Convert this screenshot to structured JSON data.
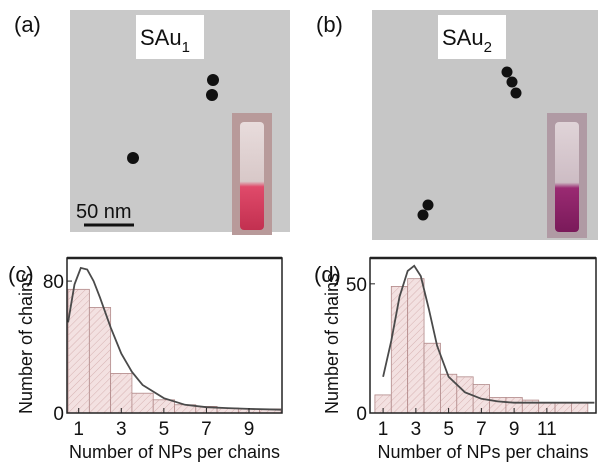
{
  "images": [
    {
      "label": "(a)",
      "sample": "SAu",
      "subscript": "1",
      "scale_bar": "50 nm"
    },
    {
      "label": "(b)",
      "sample": "SAu",
      "subscript": "2"
    }
  ],
  "chart_data": [
    {
      "type": "histogram",
      "label": "(c)",
      "x_label": "Number of NPs per chains",
      "y_label": "Number of chains",
      "bins": [
        0.5,
        1.5,
        2.5,
        3.5,
        4.5,
        5.5,
        6.5,
        7.5,
        8.5,
        9.5,
        10.5
      ],
      "counts": [
        75,
        64,
        24,
        12,
        8,
        5,
        4,
        3,
        2.5,
        2.5
      ],
      "color": "#f3e1e1",
      "fit": {
        "x": [
          0.5,
          0.8,
          1.1,
          1.4,
          1.7,
          2,
          2.5,
          3,
          3.5,
          4,
          5,
          6,
          7,
          8,
          9,
          10.5
        ],
        "y": [
          55,
          78,
          88,
          87,
          80,
          70,
          52,
          36,
          25,
          17,
          9,
          5,
          3.5,
          3,
          2.5,
          2
        ]
      },
      "xlim": [
        0.45,
        10.55
      ],
      "ylim": [
        0,
        94
      ],
      "xticks": [
        1,
        3,
        5,
        7,
        9
      ],
      "yticks": [
        0,
        80
      ]
    },
    {
      "type": "histogram",
      "label": "(d)",
      "x_label": "Number of NPs per chains",
      "y_label": "Number of chains",
      "bins": [
        0.5,
        1.5,
        2.5,
        3.5,
        4.5,
        5.5,
        6.5,
        7.5,
        8.5,
        9.5,
        10.5,
        11.5,
        12.5,
        13.5
      ],
      "counts": [
        7,
        49,
        52,
        27,
        15,
        14,
        11,
        6,
        6,
        5,
        4,
        4,
        4
      ],
      "color": "#f3e1e1",
      "fit": {
        "x": [
          1,
          1.5,
          2,
          2.5,
          2.9,
          3.3,
          3.8,
          4.3,
          5,
          6,
          7,
          8,
          9,
          10,
          11,
          12,
          13.9
        ],
        "y": [
          14,
          28,
          45,
          55,
          57,
          53,
          40,
          26,
          14,
          8,
          5.5,
          4.5,
          4,
          4,
          4,
          4,
          4
        ]
      },
      "xlim": [
        0.2,
        14
      ],
      "ylim": [
        0,
        60
      ],
      "xticks": [
        1,
        3,
        5,
        7,
        9,
        11
      ],
      "yticks": [
        0,
        50
      ]
    }
  ]
}
